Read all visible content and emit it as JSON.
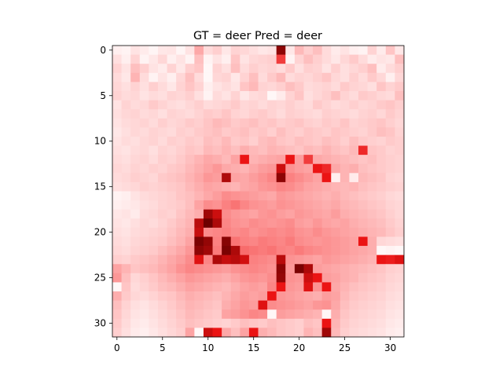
{
  "chart_data": {
    "type": "heatmap",
    "title": "GT = deer Pred = deer",
    "rows": 32,
    "cols": 32,
    "colormap": "Reds",
    "x_ticks": [
      0,
      5,
      10,
      15,
      20,
      25,
      30
    ],
    "y_ticks": [
      0,
      5,
      10,
      15,
      20,
      25,
      30
    ],
    "values": [
      [
        0.08,
        0.06,
        0.14,
        0.1,
        0.05,
        0.12,
        0.13,
        0.05,
        0.14,
        0.38,
        0.18,
        0.24,
        0.12,
        0.22,
        0.2,
        0.16,
        0.12,
        0.14,
        0.95,
        0.12,
        0.32,
        0.24,
        0.3,
        0.18,
        0.1,
        0.14,
        0.08,
        0.06,
        0.22,
        0.1,
        0.28,
        0.12
      ],
      [
        0.16,
        0.08,
        0.22,
        0.06,
        0.12,
        0.2,
        0.08,
        0.14,
        0.06,
        0.3,
        0.06,
        0.14,
        0.08,
        0.28,
        0.14,
        0.2,
        0.22,
        0.24,
        0.7,
        0.06,
        0.22,
        0.3,
        0.24,
        0.18,
        0.12,
        0.2,
        0.26,
        0.18,
        0.1,
        0.14,
        0.12,
        0.3
      ],
      [
        0.22,
        0.14,
        0.3,
        0.24,
        0.14,
        0.1,
        0.22,
        0.12,
        0.24,
        0.28,
        0.04,
        0.22,
        0.16,
        0.3,
        0.18,
        0.24,
        0.2,
        0.22,
        0.18,
        0.26,
        0.16,
        0.24,
        0.22,
        0.14,
        0.24,
        0.16,
        0.2,
        0.24,
        0.3,
        0.1,
        0.18,
        0.24
      ],
      [
        0.18,
        0.12,
        0.34,
        0.18,
        0.06,
        0.14,
        0.08,
        0.2,
        0.3,
        0.18,
        0.04,
        0.2,
        0.22,
        0.12,
        0.22,
        0.3,
        0.18,
        0.26,
        0.32,
        0.18,
        0.22,
        0.2,
        0.24,
        0.28,
        0.2,
        0.16,
        0.24,
        0.18,
        0.26,
        0.2,
        0.08,
        0.2
      ],
      [
        0.2,
        0.16,
        0.22,
        0.16,
        0.24,
        0.18,
        0.12,
        0.22,
        0.28,
        0.22,
        0.08,
        0.14,
        0.18,
        0.14,
        0.28,
        0.32,
        0.22,
        0.2,
        0.24,
        0.3,
        0.26,
        0.18,
        0.2,
        0.22,
        0.18,
        0.26,
        0.22,
        0.2,
        0.16,
        0.28,
        0.22,
        0.26
      ],
      [
        0.22,
        0.18,
        0.2,
        0.14,
        0.18,
        0.16,
        0.22,
        0.2,
        0.24,
        0.16,
        0.06,
        0.18,
        0.14,
        0.22,
        0.12,
        0.18,
        0.2,
        0.04,
        0.1,
        0.22,
        0.28,
        0.16,
        0.2,
        0.24,
        0.3,
        0.22,
        0.18,
        0.26,
        0.24,
        0.2,
        0.18,
        0.3
      ],
      [
        0.14,
        0.22,
        0.18,
        0.2,
        0.26,
        0.22,
        0.18,
        0.16,
        0.2,
        0.24,
        0.18,
        0.2,
        0.22,
        0.26,
        0.2,
        0.22,
        0.18,
        0.22,
        0.2,
        0.24,
        0.2,
        0.18,
        0.26,
        0.22,
        0.18,
        0.2,
        0.24,
        0.2,
        0.22,
        0.26,
        0.28,
        0.24
      ],
      [
        0.16,
        0.2,
        0.22,
        0.18,
        0.2,
        0.16,
        0.22,
        0.2,
        0.18,
        0.22,
        0.26,
        0.24,
        0.28,
        0.22,
        0.2,
        0.24,
        0.26,
        0.22,
        0.18,
        0.24,
        0.22,
        0.2,
        0.18,
        0.24,
        0.22,
        0.2,
        0.18,
        0.22,
        0.24,
        0.2,
        0.26,
        0.22
      ],
      [
        0.14,
        0.18,
        0.2,
        0.22,
        0.18,
        0.24,
        0.2,
        0.22,
        0.26,
        0.24,
        0.28,
        0.32,
        0.3,
        0.26,
        0.28,
        0.3,
        0.26,
        0.28,
        0.24,
        0.26,
        0.28,
        0.24,
        0.22,
        0.26,
        0.24,
        0.28,
        0.22,
        0.24,
        0.26,
        0.28,
        0.24,
        0.2
      ],
      [
        0.12,
        0.16,
        0.2,
        0.18,
        0.22,
        0.2,
        0.18,
        0.24,
        0.22,
        0.26,
        0.28,
        0.3,
        0.26,
        0.28,
        0.3,
        0.26,
        0.28,
        0.24,
        0.3,
        0.26,
        0.24,
        0.28,
        0.26,
        0.24,
        0.28,
        0.26,
        0.24,
        0.22,
        0.26,
        0.3,
        0.28,
        0.22
      ],
      [
        0.14,
        0.18,
        0.16,
        0.2,
        0.22,
        0.18,
        0.24,
        0.22,
        0.26,
        0.24,
        0.3,
        0.28,
        0.32,
        0.26,
        0.28,
        0.24,
        0.3,
        0.32,
        0.28,
        0.26,
        0.3,
        0.28,
        0.26,
        0.3,
        0.28,
        0.24,
        0.3,
        0.26,
        0.24,
        0.22,
        0.26,
        0.24
      ],
      [
        0.16,
        0.14,
        0.18,
        0.2,
        0.16,
        0.22,
        0.2,
        0.24,
        0.28,
        0.26,
        0.32,
        0.3,
        0.34,
        0.3,
        0.36,
        0.32,
        0.3,
        0.34,
        0.32,
        0.3,
        0.28,
        0.32,
        0.3,
        0.34,
        0.3,
        0.28,
        0.32,
        0.75,
        0.28,
        0.26,
        0.22,
        0.24
      ],
      [
        0.18,
        0.16,
        0.2,
        0.22,
        0.18,
        0.24,
        0.22,
        0.26,
        0.3,
        0.34,
        0.38,
        0.36,
        0.32,
        0.4,
        0.8,
        0.34,
        0.36,
        0.38,
        0.4,
        0.8,
        0.42,
        0.7,
        0.38,
        0.36,
        0.34,
        0.32,
        0.3,
        0.28,
        0.3,
        0.26,
        0.24,
        0.22
      ],
      [
        0.2,
        0.18,
        0.22,
        0.2,
        0.24,
        0.22,
        0.26,
        0.28,
        0.32,
        0.36,
        0.4,
        0.44,
        0.38,
        0.36,
        0.34,
        0.38,
        0.42,
        0.44,
        0.85,
        0.46,
        0.42,
        0.4,
        0.8,
        0.75,
        0.38,
        0.34,
        0.36,
        0.3,
        0.28,
        0.26,
        0.24,
        0.22
      ],
      [
        0.18,
        0.2,
        0.24,
        0.22,
        0.2,
        0.26,
        0.28,
        0.3,
        0.34,
        0.38,
        0.44,
        0.42,
        0.9,
        0.4,
        0.38,
        0.42,
        0.46,
        0.5,
        0.95,
        0.52,
        0.48,
        0.44,
        0.4,
        0.8,
        0.08,
        0.34,
        0.1,
        0.32,
        0.3,
        0.28,
        0.22,
        0.2
      ],
      [
        0.16,
        0.18,
        0.2,
        0.24,
        0.22,
        0.24,
        0.26,
        0.28,
        0.32,
        0.36,
        0.4,
        0.38,
        0.36,
        0.34,
        0.38,
        0.4,
        0.44,
        0.46,
        0.5,
        0.48,
        0.44,
        0.4,
        0.38,
        0.36,
        0.34,
        0.32,
        0.34,
        0.3,
        0.28,
        0.26,
        0.24,
        0.22
      ],
      [
        0.06,
        0.08,
        0.14,
        0.18,
        0.2,
        0.22,
        0.24,
        0.28,
        0.3,
        0.34,
        0.38,
        0.42,
        0.48,
        0.46,
        0.44,
        0.42,
        0.4,
        0.38,
        0.44,
        0.42,
        0.4,
        0.38,
        0.36,
        0.34,
        0.36,
        0.32,
        0.3,
        0.28,
        0.26,
        0.24,
        0.2,
        0.18
      ],
      [
        0.08,
        0.1,
        0.12,
        0.16,
        0.18,
        0.22,
        0.24,
        0.26,
        0.3,
        0.4,
        0.48,
        0.46,
        0.52,
        0.56,
        0.5,
        0.46,
        0.44,
        0.42,
        0.46,
        0.44,
        0.42,
        0.4,
        0.38,
        0.36,
        0.38,
        0.34,
        0.32,
        0.3,
        0.28,
        0.26,
        0.22,
        0.2
      ],
      [
        0.12,
        0.14,
        0.1,
        0.18,
        0.2,
        0.24,
        0.22,
        0.28,
        0.32,
        0.36,
        0.92,
        0.85,
        0.48,
        0.44,
        0.42,
        0.4,
        0.44,
        0.46,
        0.42,
        0.4,
        0.44,
        0.42,
        0.4,
        0.38,
        0.42,
        0.36,
        0.34,
        0.32,
        0.3,
        0.28,
        0.24,
        0.2
      ],
      [
        0.14,
        0.12,
        0.16,
        0.2,
        0.18,
        0.22,
        0.26,
        0.3,
        0.34,
        0.88,
        1.0,
        0.9,
        0.5,
        0.46,
        0.44,
        0.48,
        0.46,
        0.44,
        0.46,
        0.48,
        0.42,
        0.4,
        0.44,
        0.4,
        0.38,
        0.4,
        0.36,
        0.34,
        0.32,
        0.3,
        0.26,
        0.22
      ],
      [
        0.16,
        0.14,
        0.18,
        0.2,
        0.22,
        0.24,
        0.28,
        0.32,
        0.36,
        0.86,
        0.48,
        0.5,
        0.52,
        0.48,
        0.5,
        0.46,
        0.48,
        0.5,
        0.48,
        0.5,
        0.46,
        0.44,
        0.48,
        0.44,
        0.42,
        0.4,
        0.38,
        0.36,
        0.34,
        0.32,
        0.28,
        0.24
      ],
      [
        0.18,
        0.16,
        0.2,
        0.22,
        0.24,
        0.26,
        0.3,
        0.34,
        0.4,
        0.98,
        0.94,
        0.52,
        0.96,
        0.56,
        0.52,
        0.5,
        0.54,
        0.52,
        0.5,
        0.54,
        0.48,
        0.46,
        0.44,
        0.46,
        0.44,
        0.42,
        0.4,
        0.8,
        0.36,
        0.2,
        0.18,
        0.16
      ],
      [
        0.2,
        0.18,
        0.22,
        0.24,
        0.26,
        0.3,
        0.34,
        0.38,
        0.44,
        0.95,
        0.92,
        0.54,
        0.98,
        0.9,
        0.58,
        0.56,
        0.54,
        0.56,
        0.52,
        0.5,
        0.54,
        0.5,
        0.48,
        0.46,
        0.44,
        0.42,
        0.4,
        0.38,
        0.36,
        0.04,
        0.06,
        0.04
      ],
      [
        0.24,
        0.22,
        0.26,
        0.28,
        0.3,
        0.34,
        0.38,
        0.42,
        0.48,
        0.82,
        0.5,
        0.9,
        0.86,
        0.88,
        0.84,
        0.52,
        0.5,
        0.48,
        0.88,
        0.46,
        0.44,
        0.42,
        0.4,
        0.44,
        0.42,
        0.4,
        0.38,
        0.36,
        0.34,
        0.8,
        0.78,
        0.82
      ],
      [
        0.4,
        0.34,
        0.28,
        0.3,
        0.32,
        0.36,
        0.4,
        0.46,
        0.5,
        0.48,
        0.46,
        0.44,
        0.42,
        0.46,
        0.48,
        0.5,
        0.48,
        0.46,
        0.95,
        0.44,
        0.98,
        0.9,
        0.42,
        0.4,
        0.38,
        0.36,
        0.34,
        0.32,
        0.3,
        0.28,
        0.24,
        0.22
      ],
      [
        0.44,
        0.3,
        0.2,
        0.24,
        0.28,
        0.32,
        0.36,
        0.4,
        0.44,
        0.42,
        0.4,
        0.38,
        0.36,
        0.4,
        0.44,
        0.46,
        0.44,
        0.48,
        0.94,
        0.46,
        0.44,
        0.85,
        0.8,
        0.42,
        0.4,
        0.36,
        0.34,
        0.3,
        0.28,
        0.26,
        0.22,
        0.2
      ],
      [
        0.04,
        0.28,
        0.18,
        0.22,
        0.26,
        0.3,
        0.32,
        0.36,
        0.4,
        0.38,
        0.36,
        0.34,
        0.32,
        0.36,
        0.4,
        0.42,
        0.4,
        0.5,
        0.8,
        0.44,
        0.42,
        0.82,
        0.46,
        0.8,
        0.38,
        0.34,
        0.3,
        0.28,
        0.26,
        0.24,
        0.2,
        0.18
      ],
      [
        0.36,
        0.26,
        0.2,
        0.18,
        0.22,
        0.26,
        0.28,
        0.32,
        0.36,
        0.34,
        0.32,
        0.3,
        0.34,
        0.38,
        0.42,
        0.4,
        0.42,
        0.8,
        0.44,
        0.42,
        0.4,
        0.38,
        0.36,
        0.42,
        0.4,
        0.32,
        0.28,
        0.26,
        0.24,
        0.22,
        0.18,
        0.16
      ],
      [
        0.3,
        0.22,
        0.16,
        0.14,
        0.18,
        0.22,
        0.26,
        0.3,
        0.34,
        0.32,
        0.3,
        0.28,
        0.36,
        0.4,
        0.44,
        0.42,
        0.82,
        0.48,
        0.46,
        0.44,
        0.42,
        0.4,
        0.44,
        0.46,
        0.38,
        0.3,
        0.26,
        0.24,
        0.22,
        0.2,
        0.16,
        0.14
      ],
      [
        0.28,
        0.2,
        0.14,
        0.12,
        0.16,
        0.2,
        0.24,
        0.28,
        0.32,
        0.3,
        0.28,
        0.26,
        0.4,
        0.42,
        0.46,
        0.5,
        0.48,
        0.04,
        0.42,
        0.4,
        0.38,
        0.36,
        0.34,
        0.04,
        0.36,
        0.28,
        0.24,
        0.22,
        0.2,
        0.18,
        0.14,
        0.12
      ],
      [
        0.26,
        0.18,
        0.12,
        0.1,
        0.14,
        0.18,
        0.22,
        0.26,
        0.3,
        0.28,
        0.26,
        0.24,
        0.22,
        0.26,
        0.3,
        0.28,
        0.26,
        0.3,
        0.28,
        0.26,
        0.24,
        0.3,
        0.28,
        0.8,
        0.34,
        0.26,
        0.22,
        0.2,
        0.18,
        0.16,
        0.12,
        0.1
      ],
      [
        0.24,
        0.16,
        0.1,
        0.08,
        0.12,
        0.16,
        0.2,
        0.24,
        0.4,
        0.04,
        0.85,
        0.8,
        0.38,
        0.3,
        0.4,
        0.8,
        0.36,
        0.32,
        0.28,
        0.26,
        0.24,
        0.34,
        0.3,
        0.92,
        0.32,
        0.24,
        0.2,
        0.18,
        0.16,
        0.14,
        0.1,
        0.08
      ]
    ]
  }
}
